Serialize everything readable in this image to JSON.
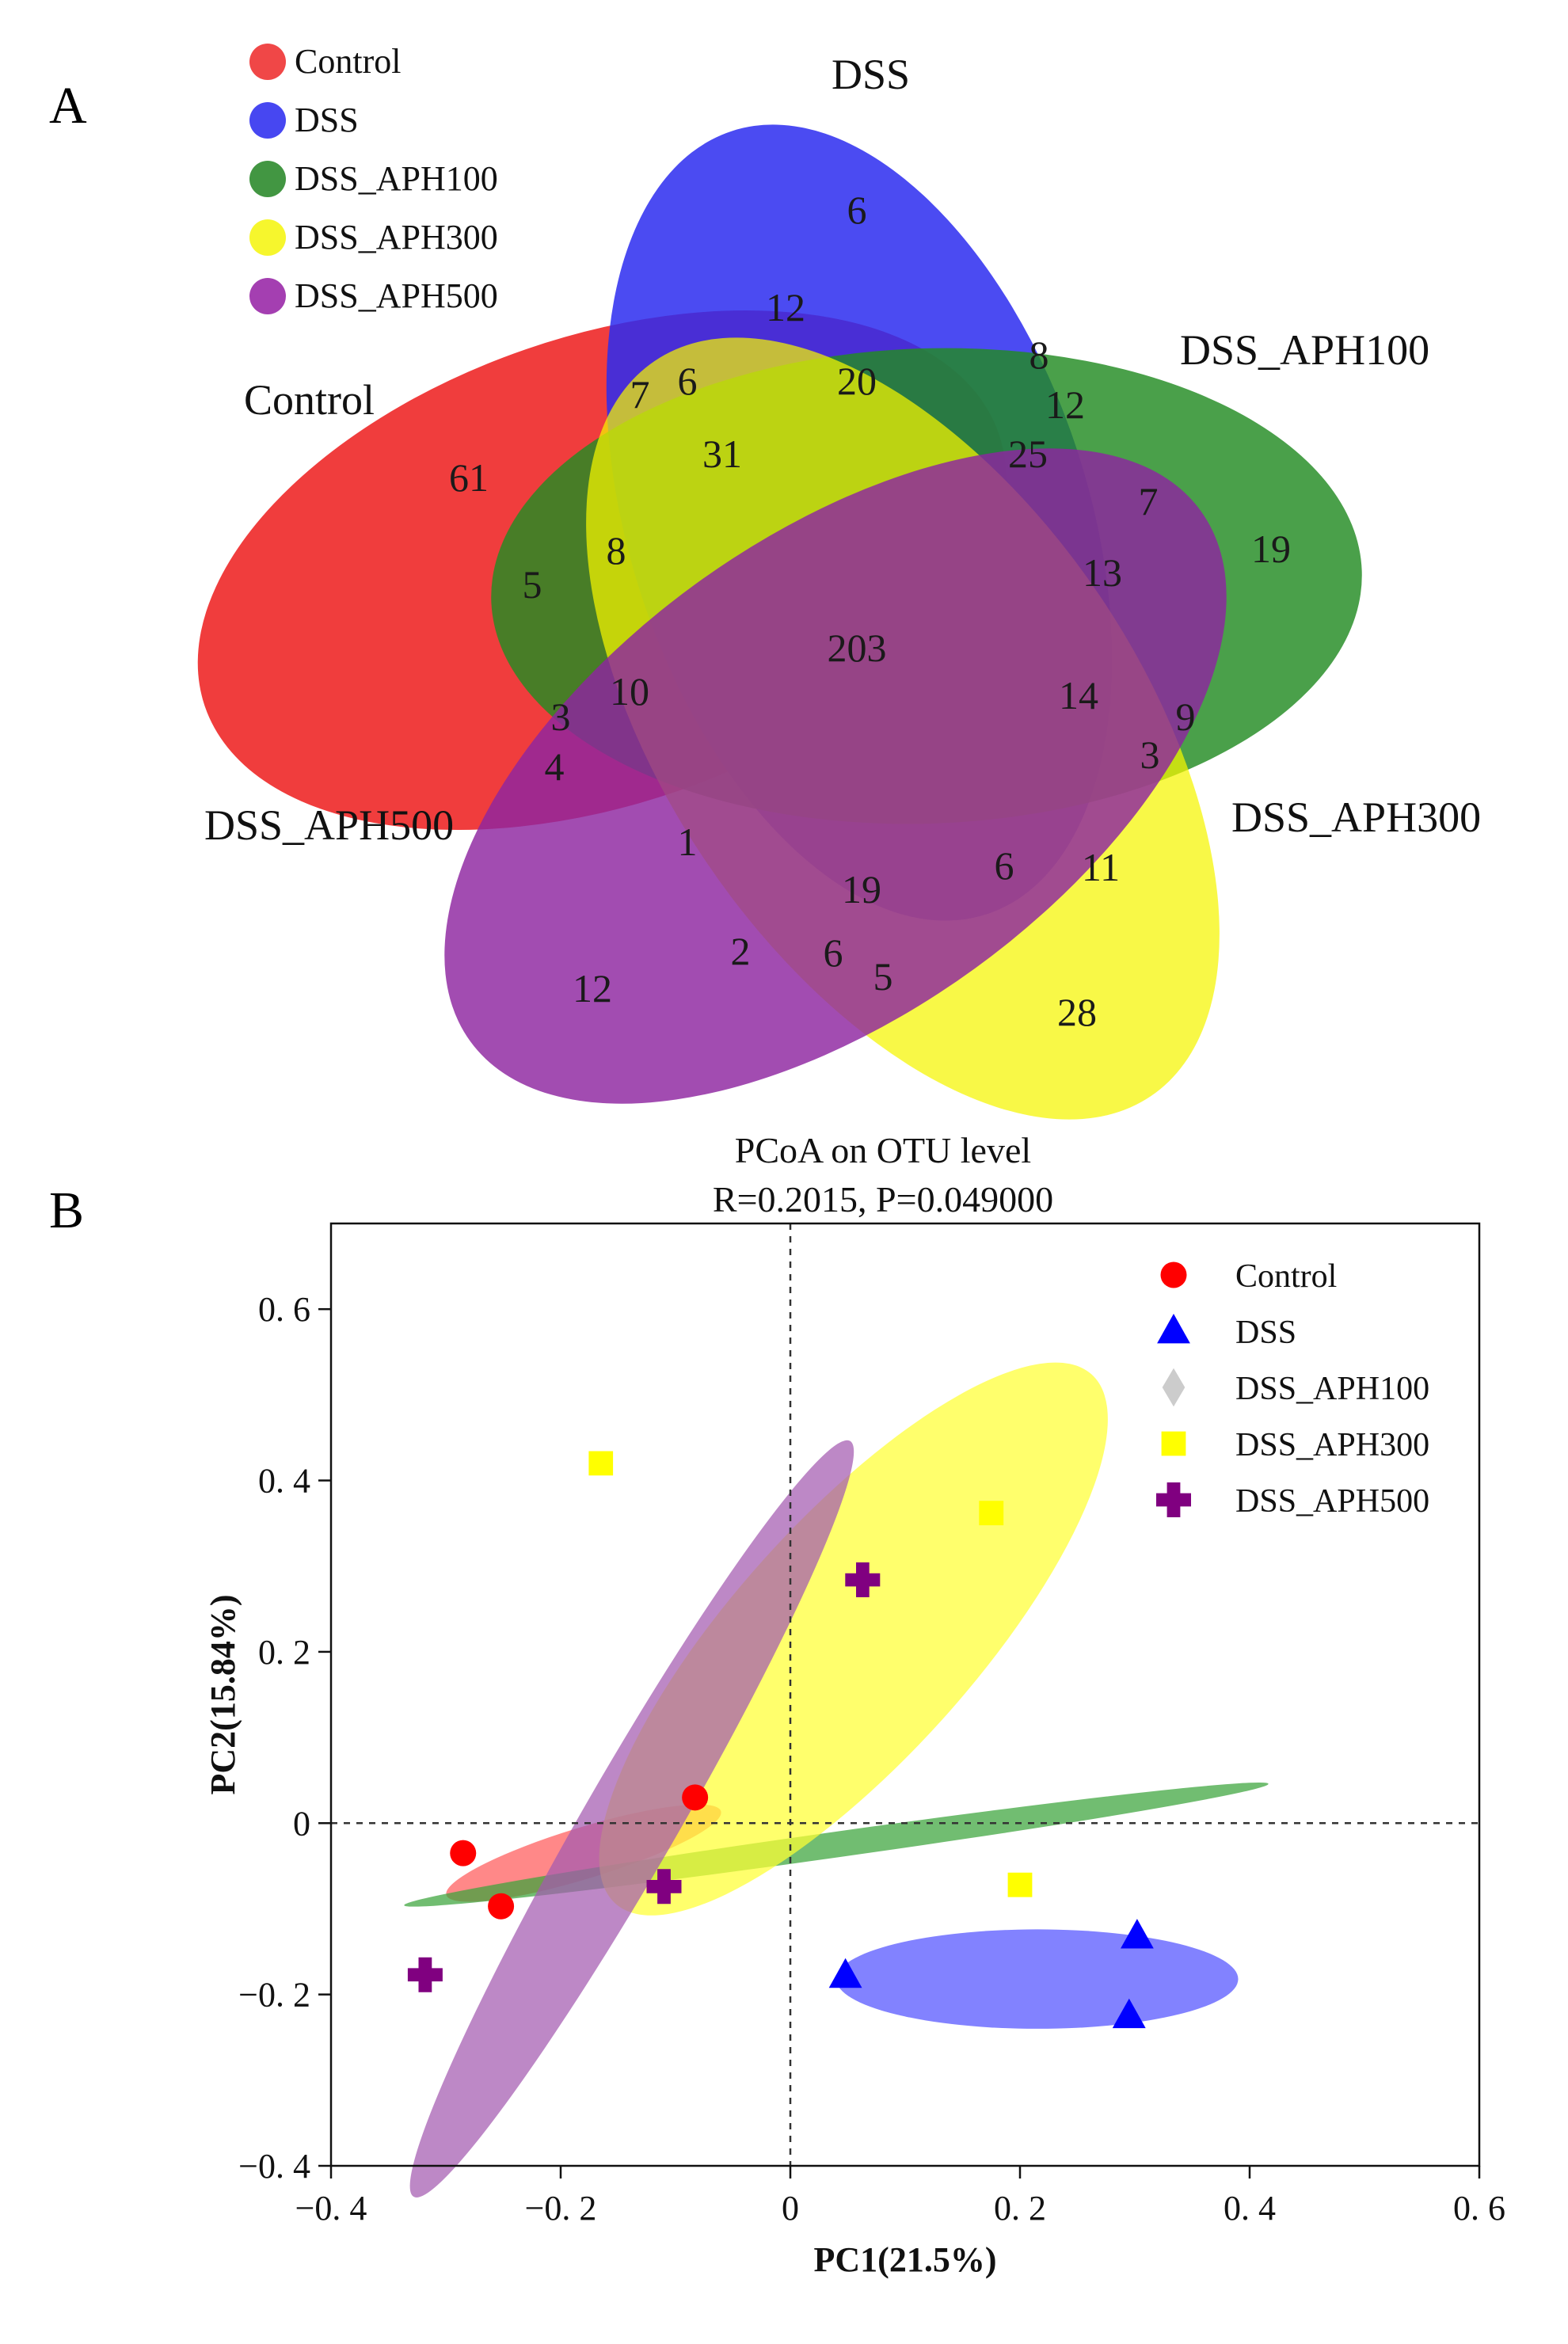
{
  "panels": {
    "a_label": "A",
    "b_label": "B"
  },
  "venn": {
    "sets": [
      {
        "name": "Control",
        "color": "#ee2222"
      },
      {
        "name": "DSS",
        "color": "#2b2bf0"
      },
      {
        "name": "DSS_APH100",
        "color": "#228b22"
      },
      {
        "name": "DSS_APH300",
        "color": "#f5f500"
      },
      {
        "name": "DSS_APH500",
        "color": "#8e24a0"
      }
    ],
    "counts": [
      "61",
      "6",
      "19",
      "28",
      "12",
      "12",
      "20",
      "8",
      "12",
      "25",
      "7",
      "13",
      "31",
      "7",
      "6",
      "8",
      "5",
      "203",
      "14",
      "9",
      "3",
      "3",
      "4",
      "10",
      "1",
      "19",
      "6",
      "11",
      "2",
      "6",
      "5"
    ]
  },
  "chart_data": {
    "type": "scatter",
    "title": "PCoA on OTU level",
    "subtitle": "R=0.2015, P=0.049000",
    "xlabel": "PC1(21.5%)",
    "ylabel": "PC2(15.84%)",
    "xlim": [
      -0.4,
      0.6
    ],
    "ylim": [
      -0.4,
      0.7
    ],
    "x_ticks": [
      -0.4,
      -0.2,
      0,
      0.2,
      0.4,
      0.6
    ],
    "x_tick_labels": [
      "−0. 4",
      "−0. 2",
      "0",
      "0. 2",
      "0. 4",
      "0. 6"
    ],
    "y_ticks": [
      0.6,
      0.4,
      0.2,
      0,
      -0.2,
      -0.4
    ],
    "y_tick_labels": [
      "0. 6",
      "0. 4",
      "0. 2",
      "0",
      "−0. 2",
      "−0. 4"
    ],
    "reference_lines": {
      "x": 0,
      "y": 0
    },
    "legend_position": "top-right",
    "series": [
      {
        "name": "Control",
        "marker": "circle",
        "color": "#ff0000",
        "points": [
          [
            -0.285,
            -0.035
          ],
          [
            -0.252,
            -0.097
          ],
          [
            -0.083,
            0.03
          ]
        ],
        "ellipse": {
          "cx": -0.18,
          "cy": -0.035,
          "rx": 0.125,
          "ry": 0.03,
          "angle_deg": 17,
          "color": "#ff5a5a"
        }
      },
      {
        "name": "DSS",
        "marker": "triangle",
        "color": "#0000ff",
        "points": [
          [
            0.048,
            -0.178
          ],
          [
            0.302,
            -0.132
          ],
          [
            0.295,
            -0.225
          ]
        ],
        "ellipse": {
          "cx": 0.215,
          "cy": -0.182,
          "rx": 0.175,
          "ry": 0.058,
          "angle_deg": 0,
          "color": "#5252ff"
        }
      },
      {
        "name": "DSS_APH100",
        "marker": "diamond",
        "color": "#cccccc",
        "points": [],
        "ellipse": {
          "cx": 0.04,
          "cy": -0.025,
          "rx": 0.38,
          "ry": 0.015,
          "angle_deg": 8,
          "color": "#3aa33a"
        }
      },
      {
        "name": "DSS_APH300",
        "marker": "square",
        "color": "#ffff00",
        "points": [
          [
            -0.165,
            0.42
          ],
          [
            0.175,
            0.362
          ],
          [
            0.2,
            -0.072
          ]
        ],
        "ellipse": {
          "cx": 0.055,
          "cy": 0.215,
          "rx": 0.31,
          "ry": 0.14,
          "angle_deg": 48,
          "color": "#ffff33"
        }
      },
      {
        "name": "DSS_APH500",
        "marker": "plus",
        "color": "#800080",
        "points": [
          [
            -0.318,
            -0.177
          ],
          [
            -0.11,
            -0.074
          ],
          [
            0.063,
            0.284
          ]
        ],
        "ellipse": {
          "cx": -0.138,
          "cy": 0.005,
          "rx": 0.38,
          "ry": 0.055,
          "angle_deg": 60,
          "color": "#a35ab0"
        }
      }
    ]
  }
}
